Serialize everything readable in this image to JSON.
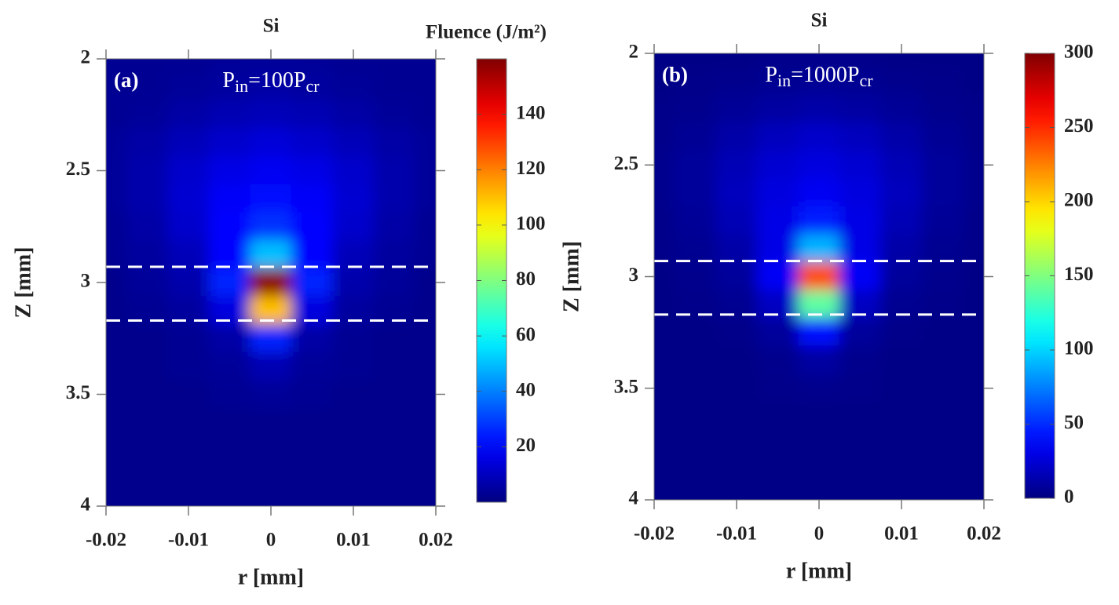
{
  "chart_data": [
    {
      "type": "heatmap",
      "title": "Si",
      "label": "(a)",
      "annotation": [
        "P",
        "in",
        "=100P",
        "cr"
      ],
      "x": [
        -0.02,
        -0.015,
        -0.01,
        -0.005,
        0,
        0.005,
        0.01,
        0.015,
        0.02
      ],
      "z": [
        2,
        2.125,
        2.25,
        2.375,
        2.5,
        2.625,
        2.75,
        2.875,
        3,
        3.125,
        3.25,
        3.375,
        3.5,
        3.625,
        3.75,
        3.875,
        4
      ],
      "values": [
        [
          3,
          3,
          3,
          4,
          4,
          4,
          3,
          3,
          3
        ],
        [
          3,
          3,
          4,
          5,
          6,
          5,
          4,
          3,
          3
        ],
        [
          3,
          4,
          6,
          8,
          9,
          8,
          6,
          4,
          3
        ],
        [
          4,
          6,
          9,
          12,
          14,
          12,
          9,
          6,
          4
        ],
        [
          4,
          7,
          12,
          16,
          18,
          16,
          12,
          7,
          4
        ],
        [
          4,
          7,
          13,
          19,
          22,
          19,
          13,
          7,
          4
        ],
        [
          3,
          6,
          12,
          20,
          28,
          20,
          12,
          6,
          3
        ],
        [
          3,
          5,
          9,
          20,
          50,
          20,
          9,
          5,
          3
        ],
        [
          2,
          4,
          7,
          25,
          158,
          25,
          7,
          4,
          2
        ],
        [
          2,
          3,
          5,
          15,
          110,
          15,
          5,
          3,
          2
        ],
        [
          2,
          2,
          3,
          6,
          25,
          6,
          3,
          2,
          2
        ],
        [
          2,
          2,
          3,
          4,
          8,
          4,
          3,
          2,
          2
        ],
        [
          2,
          2,
          2,
          3,
          4,
          3,
          2,
          2,
          2
        ],
        [
          2,
          2,
          2,
          2,
          2,
          2,
          2,
          2,
          2
        ],
        [
          2,
          2,
          2,
          2,
          2,
          2,
          2,
          2,
          2
        ],
        [
          2,
          2,
          2,
          2,
          2,
          2,
          2,
          2,
          2
        ],
        [
          2,
          2,
          2,
          2,
          2,
          2,
          2,
          2,
          2
        ]
      ],
      "xlim": [
        -0.02,
        0.02
      ],
      "ylim": [
        2,
        4
      ],
      "y_inverted": true,
      "xticks": [
        -0.02,
        -0.01,
        0,
        0.01,
        0.02
      ],
      "yticks": [
        2,
        2.5,
        3,
        3.5,
        4
      ],
      "xlabel": "r [mm]",
      "ylabel": "Z [mm]",
      "hlines": [
        2.93,
        3.17
      ],
      "colormap": "jet",
      "colorbar_label": "Fluence (J/m²)",
      "clim": [
        0,
        160
      ],
      "cticks": [
        20,
        40,
        60,
        80,
        100,
        120,
        140
      ]
    },
    {
      "type": "heatmap",
      "title": "Si",
      "label": "(b)",
      "annotation": [
        "P",
        "in",
        "=1000P",
        "cr"
      ],
      "x": [
        -0.02,
        -0.015,
        -0.01,
        -0.005,
        0,
        0.005,
        0.01,
        0.015,
        0.02
      ],
      "z": [
        2,
        2.125,
        2.25,
        2.375,
        2.5,
        2.625,
        2.75,
        2.875,
        3,
        3.125,
        3.25,
        3.375,
        3.5,
        3.625,
        3.75,
        3.875,
        4
      ],
      "values": [
        [
          2,
          2,
          2,
          3,
          3,
          3,
          2,
          2,
          2
        ],
        [
          2,
          3,
          4,
          5,
          6,
          5,
          4,
          3,
          2
        ],
        [
          3,
          4,
          7,
          10,
          12,
          10,
          7,
          4,
          3
        ],
        [
          3,
          6,
          12,
          18,
          22,
          18,
          12,
          6,
          3
        ],
        [
          4,
          8,
          16,
          24,
          28,
          24,
          16,
          8,
          4
        ],
        [
          4,
          8,
          18,
          28,
          34,
          28,
          18,
          8,
          4
        ],
        [
          3,
          7,
          16,
          30,
          45,
          30,
          16,
          7,
          3
        ],
        [
          3,
          5,
          12,
          30,
          90,
          30,
          12,
          5,
          3
        ],
        [
          2,
          4,
          8,
          35,
          240,
          35,
          8,
          4,
          2
        ],
        [
          2,
          3,
          5,
          20,
          140,
          20,
          5,
          3,
          2
        ],
        [
          2,
          2,
          3,
          8,
          40,
          8,
          3,
          2,
          2
        ],
        [
          2,
          2,
          2,
          4,
          10,
          4,
          2,
          2,
          2
        ],
        [
          2,
          2,
          2,
          3,
          4,
          3,
          2,
          2,
          2
        ],
        [
          2,
          2,
          2,
          2,
          2,
          2,
          2,
          2,
          2
        ],
        [
          2,
          2,
          2,
          2,
          2,
          2,
          2,
          2,
          2
        ],
        [
          2,
          2,
          2,
          2,
          2,
          2,
          2,
          2,
          2
        ],
        [
          2,
          2,
          2,
          2,
          2,
          2,
          2,
          2,
          2
        ]
      ],
      "xlim": [
        -0.02,
        0.02
      ],
      "ylim": [
        2,
        4
      ],
      "y_inverted": true,
      "xticks": [
        -0.02,
        -0.01,
        0,
        0.01,
        0.02
      ],
      "yticks": [
        2,
        2.5,
        3,
        3.5,
        4
      ],
      "xlabel": "r [mm]",
      "ylabel": "Z [mm]",
      "hlines": [
        2.93,
        3.17
      ],
      "colormap": "jet",
      "clim": [
        0,
        300
      ],
      "cticks": [
        0,
        50,
        100,
        150,
        200,
        250,
        300
      ]
    }
  ]
}
